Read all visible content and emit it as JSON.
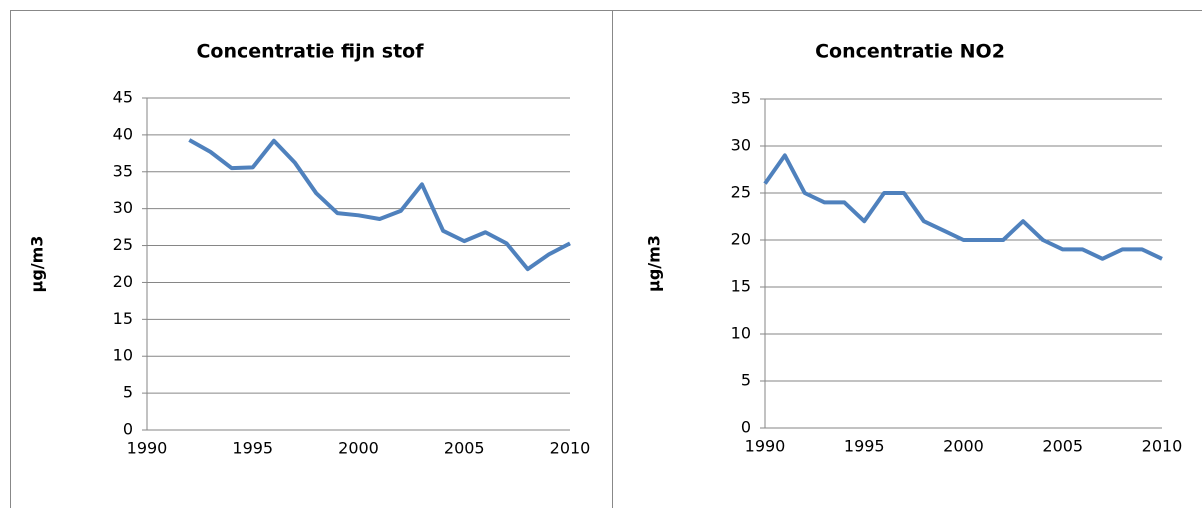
{
  "chart_data": [
    {
      "type": "line",
      "title": "Concentratie fijn stof",
      "y_label": "µg/m3",
      "x": [
        1992,
        1993,
        1994,
        1995,
        1996,
        1997,
        1998,
        1999,
        2000,
        2001,
        2002,
        2003,
        2004,
        2005,
        2006,
        2007,
        2008,
        2009,
        2010
      ],
      "series": [
        {
          "name": "fijn stof",
          "color": "#4f81bd",
          "values": [
            39.3,
            37.7,
            35.5,
            35.6,
            39.2,
            36.2,
            32.1,
            29.4,
            29.1,
            28.6,
            29.7,
            33.3,
            27.0,
            25.6,
            26.8,
            25.3,
            21.8,
            23.8,
            25.3
          ]
        }
      ],
      "xlim": [
        1990,
        2010
      ],
      "xticks": [
        1990,
        1995,
        2000,
        2005,
        2010
      ],
      "ylim": [
        0,
        45
      ],
      "yticks": [
        0,
        5,
        10,
        15,
        20,
        25,
        30,
        35,
        40,
        45
      ],
      "grid": true
    },
    {
      "type": "line",
      "title": "Concentratie NO2",
      "y_label": "µg/m3",
      "x": [
        1990,
        1991,
        1992,
        1993,
        1994,
        1995,
        1996,
        1997,
        1998,
        1999,
        2000,
        2001,
        2002,
        2003,
        2004,
        2005,
        2006,
        2007,
        2008,
        2009,
        2010
      ],
      "series": [
        {
          "name": "NO2",
          "color": "#4f81bd",
          "values": [
            26,
            29,
            25,
            24,
            24,
            22,
            25,
            25,
            22,
            21,
            20,
            20,
            20,
            22,
            20,
            19,
            19,
            18,
            19,
            19,
            18
          ]
        }
      ],
      "xlim": [
        1990,
        2010
      ],
      "xticks": [
        1990,
        1995,
        2000,
        2005,
        2010
      ],
      "ylim": [
        0,
        35
      ],
      "yticks": [
        0,
        5,
        10,
        15,
        20,
        25,
        30,
        35
      ],
      "grid": true
    }
  ]
}
